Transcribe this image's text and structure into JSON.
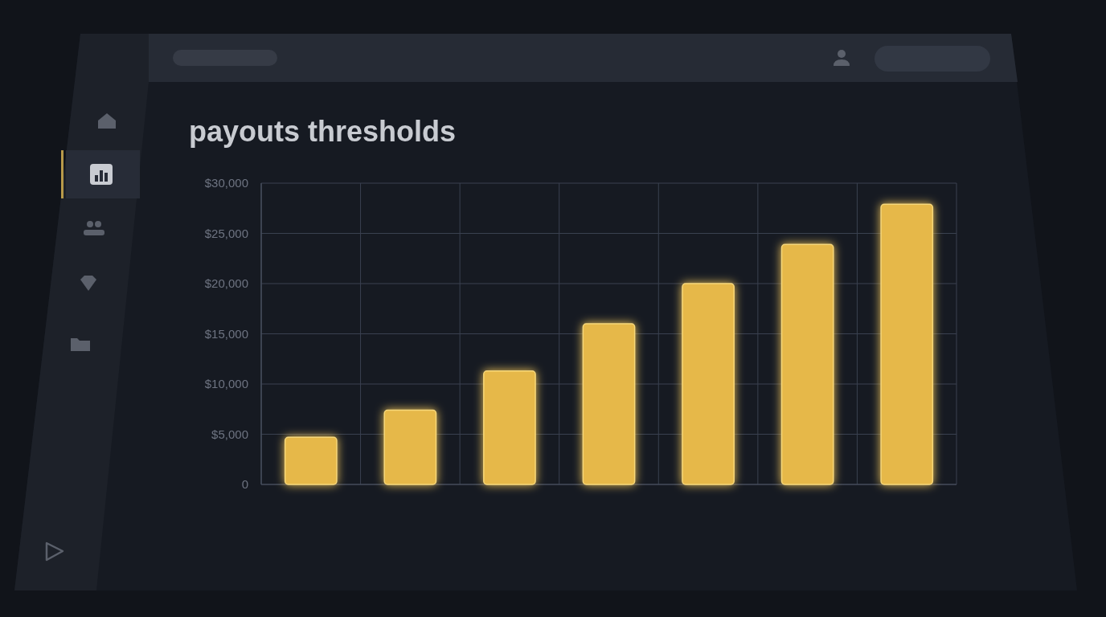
{
  "chart_data": {
    "type": "bar",
    "title": "payouts thresholds",
    "categories": [
      null,
      null,
      null,
      null,
      null,
      null,
      null
    ],
    "values": [
      4700,
      7400,
      11300,
      16000,
      20000,
      23900,
      27900
    ],
    "color": "#e6b84a",
    "ylim": [
      0,
      30000
    ],
    "yticks": [
      0,
      {
        "value": 5000,
        "label": "$5,000"
      },
      {
        "value": 10000,
        "label": "$10,000"
      },
      {
        "value": 15000,
        "label": "$15,000"
      },
      {
        "value": 20000,
        "label": "$20,000"
      },
      {
        "value": 25000,
        "label": "$25,000"
      },
      {
        "value": 30000,
        "label": "$30,000"
      }
    ],
    "grid": true
  }
}
